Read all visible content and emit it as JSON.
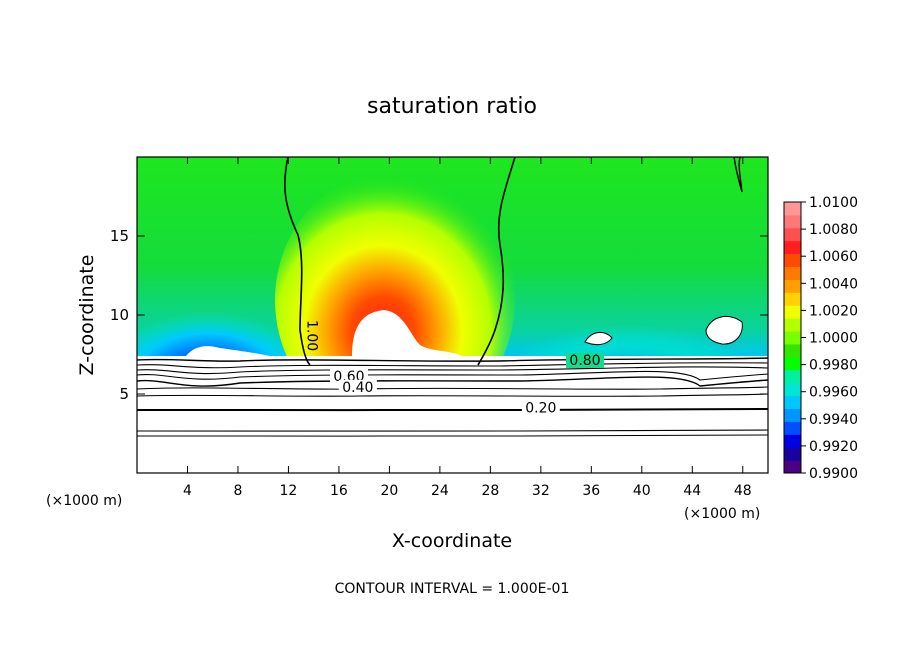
{
  "chart_data": {
    "type": "heatmap",
    "title": "saturation ratio",
    "xlabel": "X-coordinate",
    "ylabel": "Z-coordinate",
    "x_unit_left": "(×1000 m)",
    "x_unit_right": "(×1000 m)",
    "footer": "CONTOUR INTERVAL = 1.000E-01",
    "xlim": [
      0,
      50
    ],
    "ylim": [
      0,
      20
    ],
    "xticks": [
      4,
      8,
      12,
      16,
      20,
      24,
      28,
      32,
      36,
      40,
      44,
      48
    ],
    "yticks": [
      5,
      10,
      15
    ],
    "colorbar": {
      "min": 0.99,
      "max": 1.01,
      "labels": [
        "1.0100",
        "1.0080",
        "1.0060",
        "1.0040",
        "1.0020",
        "1.0000",
        "0.9980",
        "0.9960",
        "0.9940",
        "0.9920",
        "0.9900"
      ],
      "colors": [
        "#4b0082",
        "#1a00a0",
        "#0000e6",
        "#0050ff",
        "#0096ff",
        "#00c8ff",
        "#00e6d2",
        "#00f0a0",
        "#00ff00",
        "#32e600",
        "#78ff00",
        "#b4ff00",
        "#f0ff00",
        "#ffd200",
        "#ffa000",
        "#ff7800",
        "#ff4b00",
        "#ff1e1e",
        "#ff5050",
        "#ff7878",
        "#ff9696"
      ]
    },
    "contour_labels": [
      {
        "text": "1.00",
        "x": 13.5,
        "z": 8.7
      },
      {
        "text": "0.60",
        "x": 16.8,
        "z": 5.9
      },
      {
        "text": "0.40",
        "x": 17.5,
        "z": 5.2
      },
      {
        "text": "0.20",
        "x": 32.0,
        "z": 3.9
      },
      {
        "text": "0.80",
        "x": 35.5,
        "z": 6.9
      }
    ],
    "contour_levels_below_cloud": [
      {
        "level": 0.2,
        "z": 3.9
      },
      {
        "level": 0.4,
        "z": 5.0
      },
      {
        "level": 0.6,
        "z": 5.7
      }
    ]
  }
}
